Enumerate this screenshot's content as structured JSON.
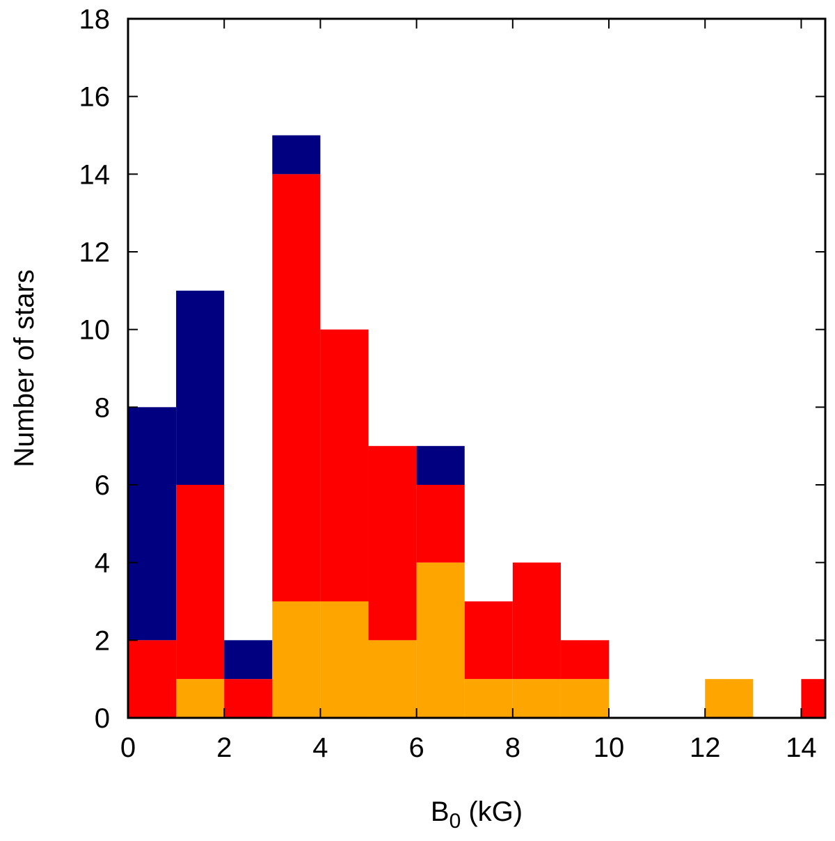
{
  "chart_data": {
    "type": "bar",
    "stacked": true,
    "bin_edges": [
      0,
      1,
      2,
      3,
      4,
      5,
      6,
      7,
      8,
      9,
      10,
      11,
      12,
      13,
      14,
      15
    ],
    "series": [
      {
        "color": "#ffa500",
        "values": [
          0,
          1,
          0,
          3,
          3,
          2,
          4,
          1,
          1,
          1,
          0,
          0,
          1,
          0,
          0
        ]
      },
      {
        "color": "#ff0000",
        "values": [
          2,
          5,
          1,
          11,
          7,
          5,
          2,
          2,
          3,
          1,
          0,
          0,
          0,
          0,
          1
        ]
      },
      {
        "color": "#000080",
        "values": [
          6,
          5,
          1,
          1,
          0,
          0,
          1,
          0,
          0,
          0,
          0,
          0,
          0,
          0,
          0
        ]
      }
    ],
    "xlabel": {
      "main": "B",
      "sub": "0",
      "rest": " (kG)"
    },
    "ylabel": "Number of stars",
    "xlim": [
      0,
      14.5
    ],
    "ylim": [
      0,
      18
    ],
    "xticks": [
      0,
      2,
      4,
      6,
      8,
      10,
      12,
      14
    ],
    "yticks": [
      0,
      2,
      4,
      6,
      8,
      10,
      12,
      14,
      16,
      18
    ],
    "grid": false,
    "legend": "none"
  }
}
